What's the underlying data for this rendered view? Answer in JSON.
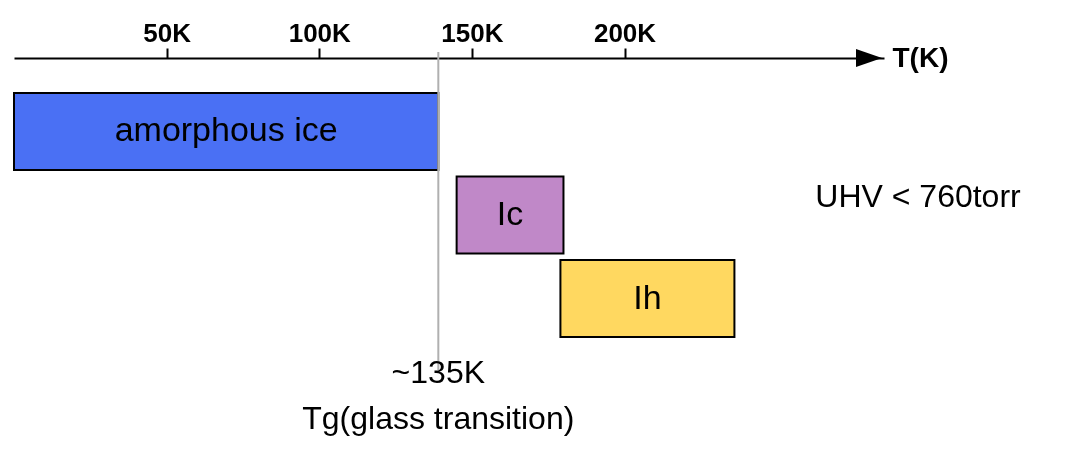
{
  "chart_data": {
    "type": "bar",
    "orientation": "horizontal",
    "xlabel": "T(K)",
    "categories": [
      "amorphous ice",
      "Ic",
      "Ih"
    ],
    "base": [
      0,
      145,
      179
    ],
    "values": [
      139,
      35,
      57
    ],
    "colors": [
      "#4a70f4",
      "#c088c8",
      "#ffd860"
    ],
    "xlim": [
      0,
      285
    ],
    "xticks": [
      {
        "value": 50,
        "label": "50K"
      },
      {
        "value": 100,
        "label": "100K"
      },
      {
        "value": 150,
        "label": "150K"
      },
      {
        "value": 200,
        "label": "200K"
      }
    ],
    "ref_lines": [
      {
        "axis": "x",
        "value": 139,
        "label": "~135K\nTg(glass transition)",
        "color": "#b0b0b0"
      }
    ],
    "annotations": [
      "UHV < 760torr"
    ],
    "grid": false
  }
}
